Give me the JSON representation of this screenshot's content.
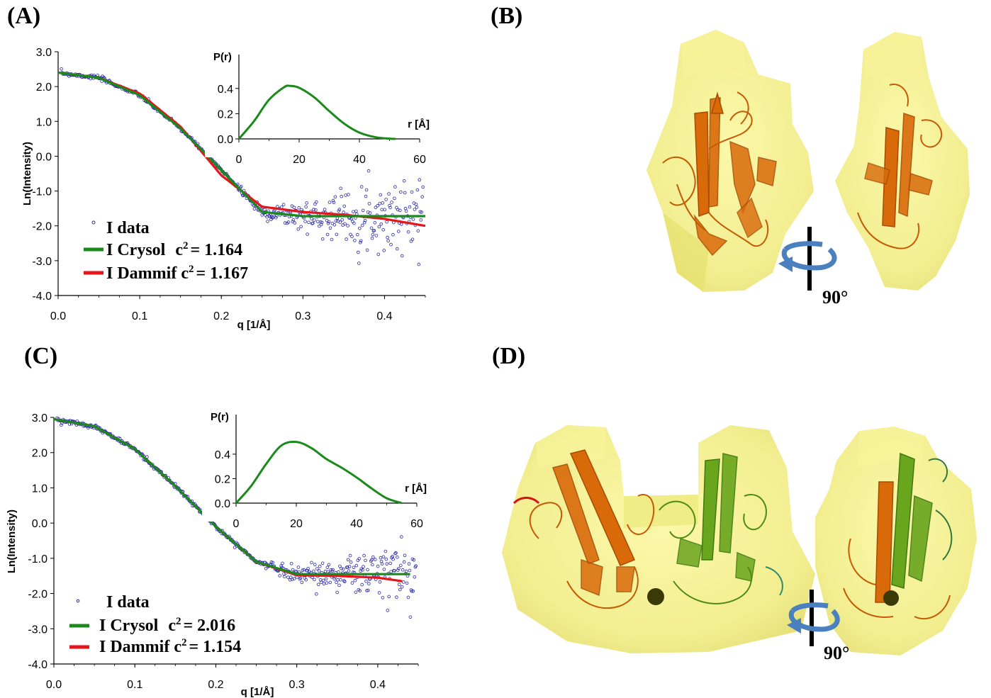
{
  "panels": {
    "a": "(A)",
    "b": "(B)",
    "c": "(C)",
    "d": "(D)"
  },
  "rotation": {
    "b": "90°",
    "d": "90°"
  },
  "colors": {
    "data": "#2a2aa8",
    "crysol": "#1a8a1a",
    "dammif": "#e8141a",
    "envelope": "#f2ee8a",
    "protein_orange": "#d96a0a",
    "protein_green": "#6aa51e"
  },
  "chart_data": [
    {
      "id": "A-main",
      "type": "scatter",
      "xlabel": "q [1/Å]",
      "ylabel": "Ln(Intensity)",
      "xlim": [
        0,
        0.45
      ],
      "ylim": [
        -4.0,
        3.0
      ],
      "xticks": [
        "0.0",
        "0.1",
        "0.2",
        "0.3",
        "0.4"
      ],
      "yticks": [
        "3.0",
        "2.0",
        "1.0",
        "0.0",
        "-1.0",
        "-2.0",
        "-3.0",
        "-4.0"
      ],
      "guinier_i0": 2.4,
      "rg_scale": 145,
      "background": -1.72,
      "noise_start": 0.22,
      "noise_growth": 4.2,
      "series": [
        {
          "name": "I data",
          "kind": "points"
        },
        {
          "name": "I Crysol",
          "kind": "line",
          "chi_label": "c",
          "chi_value": "= 1.164",
          "x": [
            0.0,
            0.05,
            0.1,
            0.15,
            0.2,
            0.25,
            0.3,
            0.35,
            0.4,
            0.45
          ],
          "y": [
            2.4,
            2.25,
            1.75,
            0.8,
            -0.4,
            -1.6,
            -1.72,
            -1.72,
            -1.72,
            -1.72
          ]
        },
        {
          "name": "I Dammif",
          "kind": "line",
          "chi_label": "c",
          "chi_value": "= 1.167",
          "x": [
            0.0,
            0.05,
            0.1,
            0.15,
            0.2,
            0.25,
            0.3,
            0.35,
            0.4,
            0.45
          ],
          "y": [
            2.4,
            2.25,
            1.8,
            0.85,
            -0.55,
            -1.45,
            -1.6,
            -1.68,
            -1.8,
            -2.0
          ]
        }
      ],
      "inset": {
        "ylabel": "P(r)",
        "xlabel": "r [Å]",
        "xlim": [
          0,
          60
        ],
        "ylim": [
          0,
          0.5
        ],
        "xticks": [
          "0",
          "20",
          "40",
          "60"
        ],
        "yticks": [
          "0.0",
          "0.2",
          "0.4"
        ],
        "x": [
          0,
          5,
          10,
          15,
          17,
          20,
          25,
          30,
          35,
          40,
          45,
          50,
          52
        ],
        "y": [
          0,
          0.14,
          0.31,
          0.41,
          0.42,
          0.405,
          0.33,
          0.22,
          0.12,
          0.05,
          0.015,
          0.002,
          0
        ]
      }
    },
    {
      "id": "C-main",
      "type": "scatter",
      "xlabel": "q [1/Å]",
      "ylabel": "Ln(Intensity)",
      "xlim": [
        0,
        0.45
      ],
      "ylim": [
        -4.0,
        3.0
      ],
      "xticks": [
        "0.0",
        "0.1",
        "0.2",
        "0.3",
        "0.4"
      ],
      "yticks": [
        "3.0",
        "2.0",
        "1.0",
        "0.0",
        "-1.0",
        "-2.0",
        "-3.0",
        "-4.0"
      ],
      "guinier_i0": 2.95,
      "rg_scale": 120,
      "background": -1.45,
      "noise_start": 0.26,
      "noise_growth": 3.5,
      "series": [
        {
          "name": "I data",
          "kind": "points"
        },
        {
          "name": "I Crysol",
          "kind": "line",
          "chi_label": "c",
          "chi_value": "= 2.016",
          "x": [
            0.0,
            0.05,
            0.1,
            0.15,
            0.2,
            0.25,
            0.3,
            0.35,
            0.4,
            0.44
          ],
          "y": [
            2.95,
            2.75,
            2.1,
            1.05,
            -0.1,
            -1.1,
            -1.45,
            -1.45,
            -1.45,
            -1.45
          ]
        },
        {
          "name": "I Dammif",
          "kind": "line",
          "chi_label": "c",
          "chi_value": "= 1.154",
          "x": [
            0.0,
            0.05,
            0.1,
            0.15,
            0.2,
            0.25,
            0.3,
            0.35,
            0.4,
            0.43
          ],
          "y": [
            2.95,
            2.75,
            2.1,
            1.05,
            -0.1,
            -1.1,
            -1.48,
            -1.5,
            -1.55,
            -1.65
          ]
        }
      ],
      "inset": {
        "ylabel": "P(r)",
        "xlabel": "r [Å]",
        "xlim": [
          0,
          60
        ],
        "ylim": [
          0,
          0.55
        ],
        "xticks": [
          "0",
          "20",
          "40",
          "60"
        ],
        "yticks": [
          "0.0",
          "0.2",
          "0.4"
        ],
        "x": [
          0,
          5,
          10,
          15,
          20,
          25,
          30,
          35,
          40,
          45,
          50,
          55
        ],
        "y": [
          0,
          0.14,
          0.32,
          0.47,
          0.5,
          0.45,
          0.36,
          0.29,
          0.21,
          0.12,
          0.04,
          0
        ]
      }
    }
  ]
}
